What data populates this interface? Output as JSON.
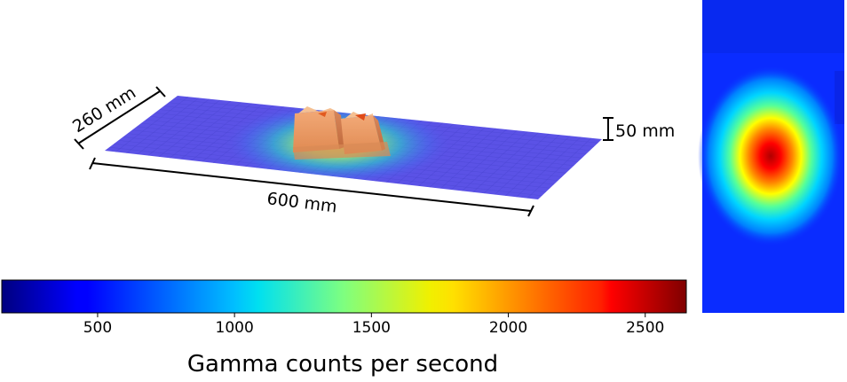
{
  "chart_data": {
    "type": "heatmap",
    "title": "",
    "dimensions": {
      "width_label": "600 mm",
      "depth_label": "260 mm",
      "height_label": "50 mm"
    },
    "colorbar": {
      "label": "Gamma counts per second",
      "range": [
        150,
        2650
      ],
      "ticks": [
        500,
        1000,
        1500,
        2000,
        2500
      ],
      "colormap": "jet"
    },
    "hotspot": {
      "peak_value": 2600,
      "background_value": 250,
      "plateau_value": 1900
    }
  },
  "colors": {
    "background": "#ffffff",
    "axis": "#000000"
  }
}
